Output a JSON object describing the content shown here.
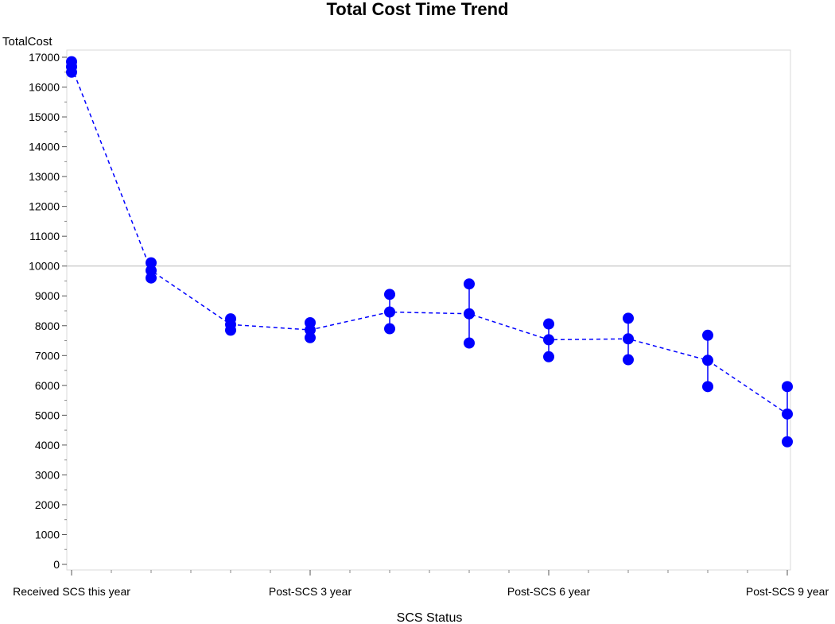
{
  "chart_data": {
    "type": "line",
    "title": "Total Cost Time Trend",
    "ylabel": "TotalCost",
    "xlabel": "SCS Status",
    "ylim": [
      0,
      17000
    ],
    "yticks": [
      0,
      1000,
      2000,
      3000,
      4000,
      5000,
      6000,
      7000,
      8000,
      9000,
      10000,
      11000,
      12000,
      13000,
      14000,
      15000,
      16000,
      17000
    ],
    "x_positions": [
      0,
      1,
      2,
      3,
      4,
      5,
      6,
      7,
      8,
      9
    ],
    "x_tick_labels": [
      {
        "x": 0,
        "label": "Received SCS this year"
      },
      {
        "x": 3,
        "label": "Post-SCS 3 year"
      },
      {
        "x": 6,
        "label": "Post-SCS 6 year"
      },
      {
        "x": 9,
        "label": "Post-SCS 9 year"
      }
    ],
    "reference_line": 10000,
    "grid": false,
    "series": [
      {
        "mean": [
          16680,
          9850,
          8040,
          7860,
          8460,
          8400,
          7530,
          7560,
          6840,
          5040
        ],
        "upper": [
          16850,
          10110,
          8230,
          8100,
          9050,
          9400,
          8060,
          8250,
          7680,
          5960
        ],
        "lower": [
          16500,
          9600,
          7850,
          7600,
          7900,
          7420,
          6960,
          6860,
          5960,
          4110
        ],
        "color": "#0000ff"
      }
    ]
  }
}
